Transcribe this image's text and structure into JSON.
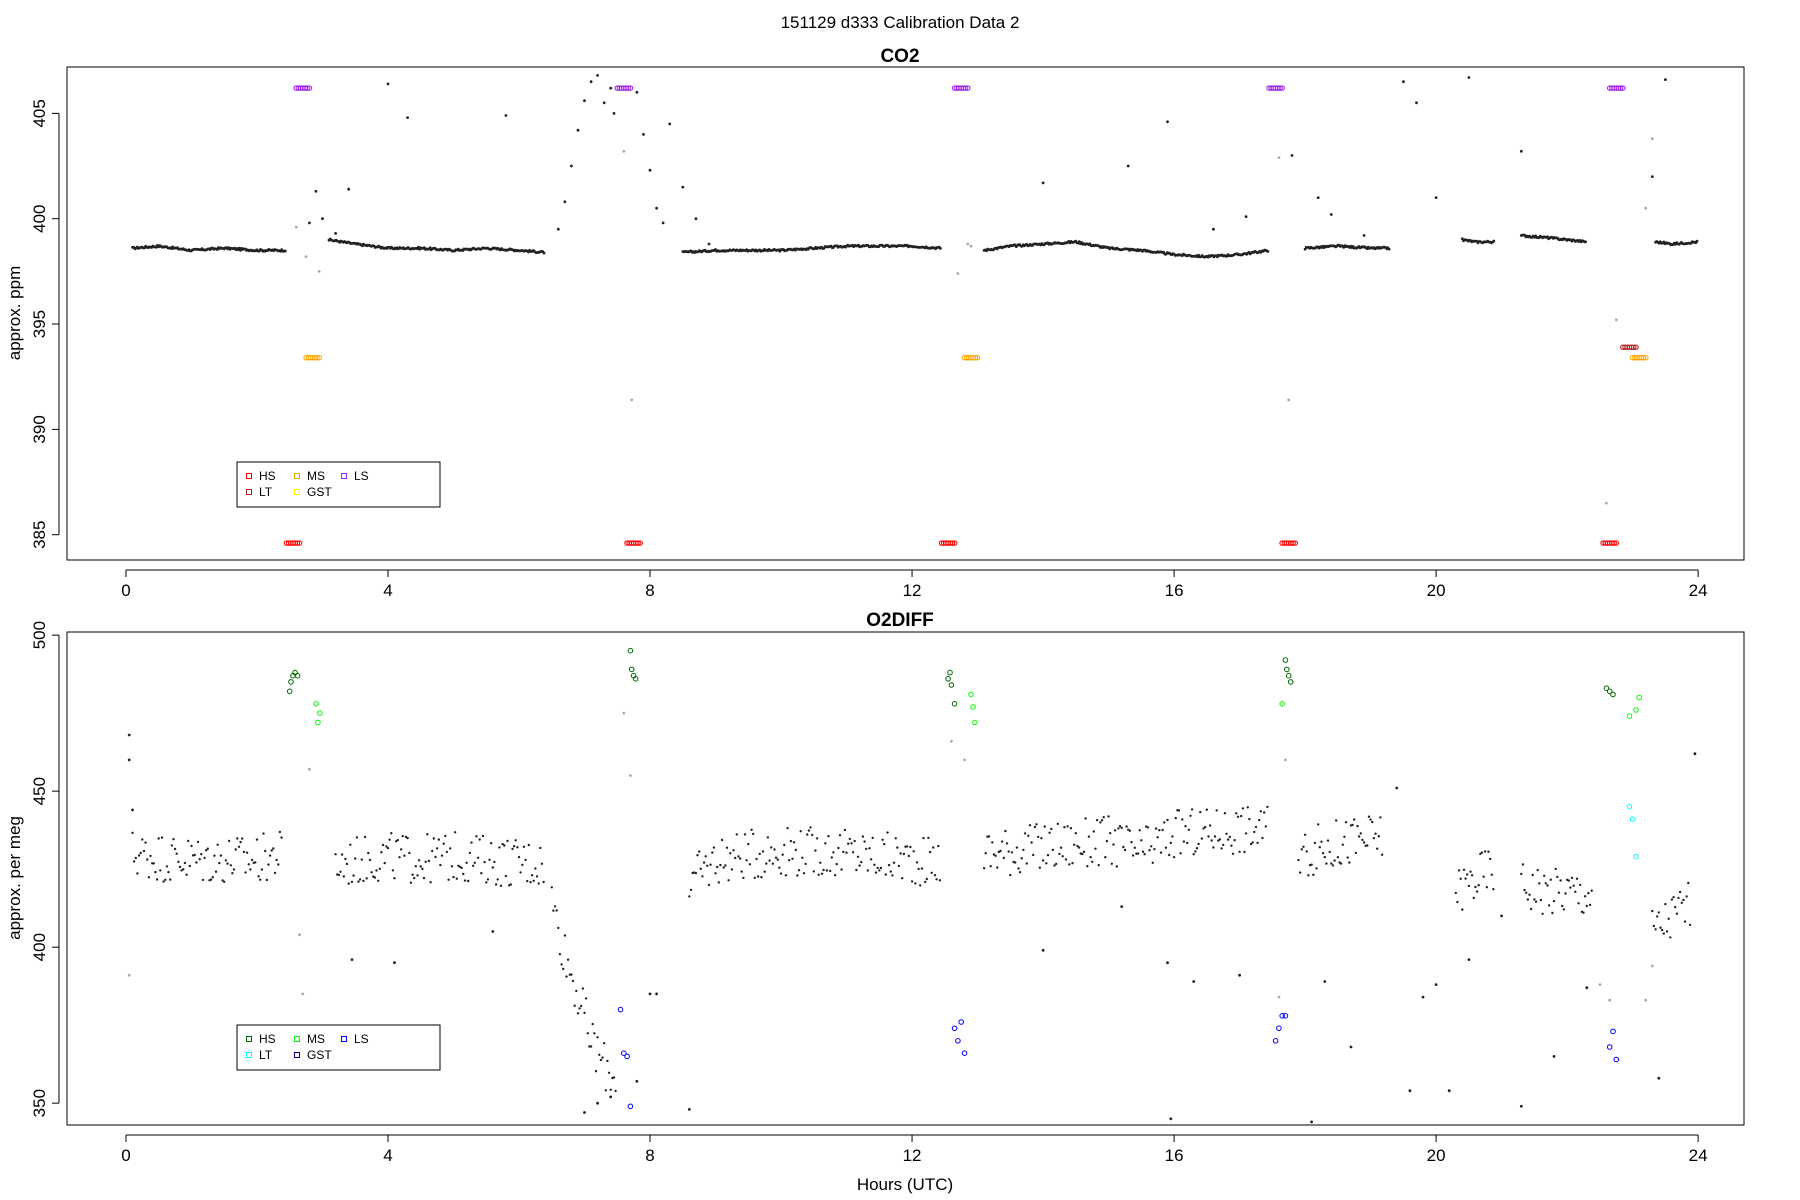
{
  "figure": {
    "suptitle": "151129   d333   Calibration Data 2",
    "xlabel": "Hours (UTC)"
  },
  "chart_data": [
    {
      "type": "scatter",
      "title": "CO2",
      "xlabel": "",
      "ylabel": "approx. ppm",
      "xlim": [
        -0.9,
        24.7
      ],
      "ylim": [
        383.8,
        407.2
      ],
      "xticks": [
        0,
        4,
        8,
        12,
        16,
        20,
        24
      ],
      "yticks": [
        385,
        390,
        395,
        400,
        405
      ],
      "grid": false,
      "legend": {
        "position": "bottom-left",
        "entries": [
          {
            "name": "HS",
            "color": "#ff0000"
          },
          {
            "name": "MS",
            "color": "#ffa500"
          },
          {
            "name": "LS",
            "color": "#a020f0"
          },
          {
            "name": "LT",
            "color": "#b22222"
          },
          {
            "name": "GST",
            "color": "#ffff00"
          }
        ]
      },
      "baseline_segments": [
        {
          "x": [
            0.1,
            0.5,
            1.0,
            1.5,
            2.0,
            2.45
          ],
          "y": [
            398.6,
            398.7,
            398.5,
            398.6,
            398.5,
            398.5
          ]
        },
        {
          "x": [
            3.1,
            3.5,
            4.0,
            4.5,
            5.0,
            5.5,
            6.0,
            6.4
          ],
          "y": [
            399.0,
            398.8,
            398.6,
            398.6,
            398.5,
            398.6,
            398.5,
            398.4
          ]
        },
        {
          "x": [
            8.5,
            9.0,
            10.0,
            11.0,
            12.0,
            12.45
          ],
          "y": [
            398.4,
            398.5,
            398.5,
            398.7,
            398.7,
            398.6
          ]
        },
        {
          "x": [
            13.1,
            13.5,
            14.0,
            14.5,
            15.0,
            15.5,
            16.0,
            16.5,
            17.0,
            17.45
          ],
          "y": [
            398.5,
            398.7,
            398.8,
            398.9,
            398.6,
            398.5,
            398.3,
            398.2,
            398.3,
            398.5
          ]
        },
        {
          "x": [
            18.0,
            18.5,
            19.0,
            19.3
          ],
          "y": [
            398.6,
            398.7,
            398.6,
            398.6
          ]
        },
        {
          "x": [
            20.4,
            20.6,
            20.9
          ],
          "y": [
            399.0,
            398.9,
            398.9
          ]
        },
        {
          "x": [
            21.3,
            21.7,
            22.0,
            22.3
          ],
          "y": [
            399.2,
            399.1,
            399.0,
            398.9
          ]
        },
        {
          "x": [
            23.35,
            23.6,
            24.0
          ],
          "y": [
            398.9,
            398.8,
            398.9
          ]
        }
      ],
      "scatter_points": {
        "x": [
          6.6,
          6.7,
          6.8,
          6.9,
          7.0,
          7.1,
          7.2,
          7.3,
          7.4,
          7.45,
          7.8,
          7.9,
          8.0,
          8.1,
          8.2,
          8.3,
          8.5,
          8.7,
          8.9,
          2.8,
          2.9,
          3.0,
          3.2,
          3.4,
          4.0,
          4.3,
          5.8,
          14.0,
          15.3,
          15.9,
          16.6,
          17.1,
          17.8,
          18.2,
          18.4,
          18.9,
          19.5,
          19.7,
          20.0,
          20.5,
          21.3,
          23.3,
          23.5
        ],
        "y": [
          399.5,
          400.8,
          402.5,
          404.2,
          405.6,
          406.5,
          406.8,
          405.5,
          406.2,
          405.0,
          406.0,
          404.0,
          402.3,
          400.5,
          399.8,
          404.5,
          401.5,
          400.0,
          398.8,
          399.8,
          401.3,
          400.0,
          399.3,
          401.4,
          406.4,
          404.8,
          404.9,
          401.7,
          402.5,
          404.6,
          399.5,
          400.1,
          403.0,
          401.0,
          400.2,
          399.2,
          406.5,
          405.5,
          401.0,
          406.7,
          403.2,
          402.0,
          406.6
        ]
      },
      "grey_points": {
        "x": [
          2.6,
          2.75,
          2.95,
          7.6,
          7.72,
          12.7,
          12.85,
          12.9,
          17.6,
          17.75,
          22.6,
          22.75,
          23.2,
          23.3
        ],
        "y": [
          399.6,
          398.2,
          397.5,
          403.2,
          391.4,
          397.4,
          398.8,
          398.7,
          402.9,
          391.4,
          386.5,
          395.2,
          400.5,
          403.8
        ]
      },
      "calibrations": {
        "HS": {
          "x": [
            2.55,
            7.75,
            12.55,
            17.75,
            22.65
          ],
          "y": [
            384.6,
            384.6,
            384.6,
            384.6,
            384.6
          ],
          "color": "#ff0000"
        },
        "MS": {
          "x": [
            2.85,
            12.9,
            23.1
          ],
          "y": [
            393.4,
            393.4,
            393.4
          ],
          "color": "#ffa500"
        },
        "LS": {
          "x": [
            2.7,
            7.6,
            12.75,
            17.55,
            22.75
          ],
          "y": [
            406.2,
            406.2,
            406.2,
            406.2,
            406.2
          ],
          "color": "#a020f0"
        },
        "LT": {
          "x": [
            22.95
          ],
          "y": [
            393.9
          ],
          "color": "#b22222"
        }
      }
    },
    {
      "type": "scatter",
      "title": "O2DIFF",
      "xlabel": "Hours (UTC)",
      "ylabel": "approx. per meg",
      "xlim": [
        -0.9,
        24.7
      ],
      "ylim": [
        343,
        501
      ],
      "xticks": [
        0,
        4,
        8,
        12,
        16,
        20,
        24
      ],
      "yticks": [
        350,
        400,
        450,
        500
      ],
      "grid": false,
      "legend": {
        "position": "bottom-left",
        "entries": [
          {
            "name": "HS",
            "color": "#006400"
          },
          {
            "name": "MS",
            "color": "#00ff00"
          },
          {
            "name": "LS",
            "color": "#0000ff"
          },
          {
            "name": "LT",
            "color": "#00ffff"
          },
          {
            "name": "GST",
            "color": "#00008b"
          }
        ]
      },
      "baseline_segments": [
        {
          "x": [
            0.1,
            0.5,
            1.0,
            1.5,
            2.0,
            2.4
          ],
          "y": [
            430,
            429,
            428,
            428,
            428,
            430
          ]
        },
        {
          "x": [
            3.2,
            3.6,
            4.0,
            4.5,
            5.0,
            5.5,
            6.0,
            6.4
          ],
          "y": [
            426,
            428,
            429,
            428,
            429,
            428,
            427,
            427
          ]
        },
        {
          "x": [
            6.5,
            6.7,
            6.9,
            7.1,
            7.3,
            7.5
          ],
          "y": [
            415,
            398,
            385,
            370,
            362,
            358
          ]
        },
        {
          "x": [
            8.6,
            9.0,
            10.0,
            11.0,
            12.0,
            12.45
          ],
          "y": [
            420,
            428,
            431,
            430,
            428,
            427
          ]
        },
        {
          "x": [
            13.1,
            13.5,
            14.0,
            14.5,
            15.0,
            15.5,
            16.0,
            16.5,
            17.0,
            17.45
          ],
          "y": [
            430,
            431,
            432,
            433,
            434,
            430,
            436,
            437,
            438,
            437
          ]
        },
        {
          "x": [
            17.9,
            18.3,
            18.7,
            19.2
          ],
          "y": [
            430,
            432,
            434,
            435
          ]
        },
        {
          "x": [
            20.3,
            20.6,
            20.9
          ],
          "y": [
            418,
            422,
            426
          ]
        },
        {
          "x": [
            21.3,
            21.7,
            22.0,
            22.4
          ],
          "y": [
            420,
            418,
            418,
            417
          ]
        },
        {
          "x": [
            23.3,
            23.6,
            23.9
          ],
          "y": [
            405,
            410,
            415
          ]
        }
      ],
      "scatter_points": {
        "x": [
          0.05,
          0.05,
          0.1,
          3.45,
          4.1,
          5.6,
          7.0,
          7.2,
          7.4,
          7.8,
          8.0,
          8.1,
          8.6,
          14.0,
          15.2,
          15.9,
          15.95,
          16.3,
          17.0,
          18.1,
          18.3,
          18.7,
          19.4,
          19.6,
          19.8,
          20.0,
          20.2,
          20.5,
          21.0,
          21.3,
          21.8,
          22.3,
          23.4,
          23.95
        ],
        "y": [
          468,
          460,
          444,
          396,
          395,
          405,
          347,
          350,
          352,
          357,
          385,
          385,
          348,
          399,
          413,
          395,
          345,
          389,
          391,
          344,
          389,
          368,
          451,
          354,
          384,
          388,
          354,
          396,
          410,
          349,
          365,
          387,
          358,
          462
        ]
      },
      "grey_points": {
        "x": [
          0.05,
          2.65,
          2.7,
          2.8,
          7.6,
          7.7,
          12.6,
          12.8,
          17.6,
          17.7,
          22.5,
          22.65,
          23.2,
          23.3
        ],
        "y": [
          391,
          404,
          385,
          457,
          475,
          455,
          466,
          460,
          384,
          460,
          388,
          383,
          383,
          394
        ]
      },
      "calibrations": {
        "HS": {
          "x": [
            2.5,
            2.52,
            2.55,
            2.58,
            2.62,
            7.7,
            7.72,
            7.75,
            7.78,
            12.55,
            12.58,
            12.6,
            12.65,
            17.7,
            17.72,
            17.75,
            17.78,
            22.6,
            22.65,
            22.7
          ],
          "y": [
            482,
            485,
            487,
            488,
            487,
            495,
            489,
            487,
            486,
            486,
            488,
            484,
            478,
            492,
            489,
            487,
            485,
            483,
            482,
            481
          ],
          "color": "#006400"
        },
        "MS": {
          "x": [
            2.9,
            2.93,
            2.96,
            12.9,
            12.93,
            12.96,
            17.65,
            22.95,
            23.05,
            23.1
          ],
          "y": [
            478,
            472,
            475,
            481,
            477,
            472,
            478,
            474,
            476,
            480
          ],
          "color": "#00ff00"
        },
        "LS": {
          "x": [
            7.55,
            7.6,
            7.65,
            7.7,
            12.65,
            12.7,
            12.75,
            12.8,
            17.55,
            17.6,
            17.65,
            17.7,
            22.65,
            22.7,
            22.75
          ],
          "y": [
            380,
            366,
            365,
            349,
            374,
            370,
            376,
            366,
            370,
            374,
            378,
            378,
            368,
            373,
            364
          ],
          "color": "#0000ff"
        },
        "LT": {
          "x": [
            22.95,
            23.0,
            23.05
          ],
          "y": [
            445,
            441,
            429
          ],
          "color": "#00ffff"
        }
      }
    }
  ]
}
